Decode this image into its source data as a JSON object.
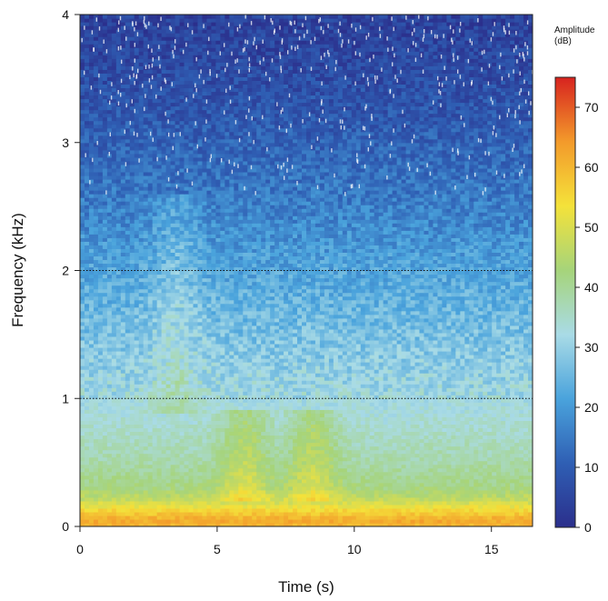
{
  "chart_data": {
    "type": "heatmap",
    "title": "",
    "xlabel": "Time (s)",
    "ylabel": "Frequency (kHz)",
    "xlim": [
      0,
      16.5
    ],
    "ylim": [
      0,
      4
    ],
    "x_ticks": [
      0,
      5,
      10,
      15
    ],
    "x_tick_labels": [
      "0",
      "5",
      "10",
      "15"
    ],
    "y_ticks": [
      0,
      1,
      2,
      3,
      4
    ],
    "y_tick_labels": [
      "0",
      "1",
      "2",
      "3",
      "4"
    ],
    "reference_lines_khz": [
      1,
      2
    ],
    "reference_line_style": "dotted",
    "colorbar": {
      "title_line1": "Amplitude",
      "title_line2": "(dB)",
      "min": 0,
      "max": 75,
      "ticks": [
        0,
        10,
        20,
        30,
        40,
        50,
        60,
        70
      ],
      "tick_labels": [
        "0",
        "10",
        "20",
        "30",
        "40",
        "50",
        "60",
        "70"
      ],
      "colormap": [
        "#2b2f8c",
        "#2f5fb4",
        "#4aa3dc",
        "#a9dbe6",
        "#a6d47a",
        "#f4e23a",
        "#f39a2b",
        "#d7231f"
      ],
      "position": "right"
    },
    "amplitude_profile_db": [
      {
        "freq_khz": 0.0,
        "db": 60
      },
      {
        "freq_khz": 0.05,
        "db": 62
      },
      {
        "freq_khz": 0.12,
        "db": 56
      },
      {
        "freq_khz": 0.2,
        "db": 48
      },
      {
        "freq_khz": 0.3,
        "db": 42
      },
      {
        "freq_khz": 0.5,
        "db": 38
      },
      {
        "freq_khz": 0.8,
        "db": 34
      },
      {
        "freq_khz": 1.0,
        "db": 32
      },
      {
        "freq_khz": 1.3,
        "db": 29
      },
      {
        "freq_khz": 1.6,
        "db": 26
      },
      {
        "freq_khz": 2.0,
        "db": 22
      },
      {
        "freq_khz": 2.4,
        "db": 17
      },
      {
        "freq_khz": 2.8,
        "db": 13
      },
      {
        "freq_khz": 3.2,
        "db": 9
      },
      {
        "freq_khz": 3.6,
        "db": 6
      },
      {
        "freq_khz": 4.0,
        "db": 4
      }
    ],
    "events": [
      {
        "time_s": 3.5,
        "freq_range_khz": [
          0.9,
          2.6
        ],
        "peak_db": 30
      },
      {
        "time_s": 6.0,
        "freq_range_khz": [
          0.2,
          0.9
        ],
        "peak_db": 46
      },
      {
        "time_s": 8.5,
        "freq_range_khz": [
          0.2,
          0.9
        ],
        "peak_db": 46
      }
    ],
    "grid": false
  }
}
